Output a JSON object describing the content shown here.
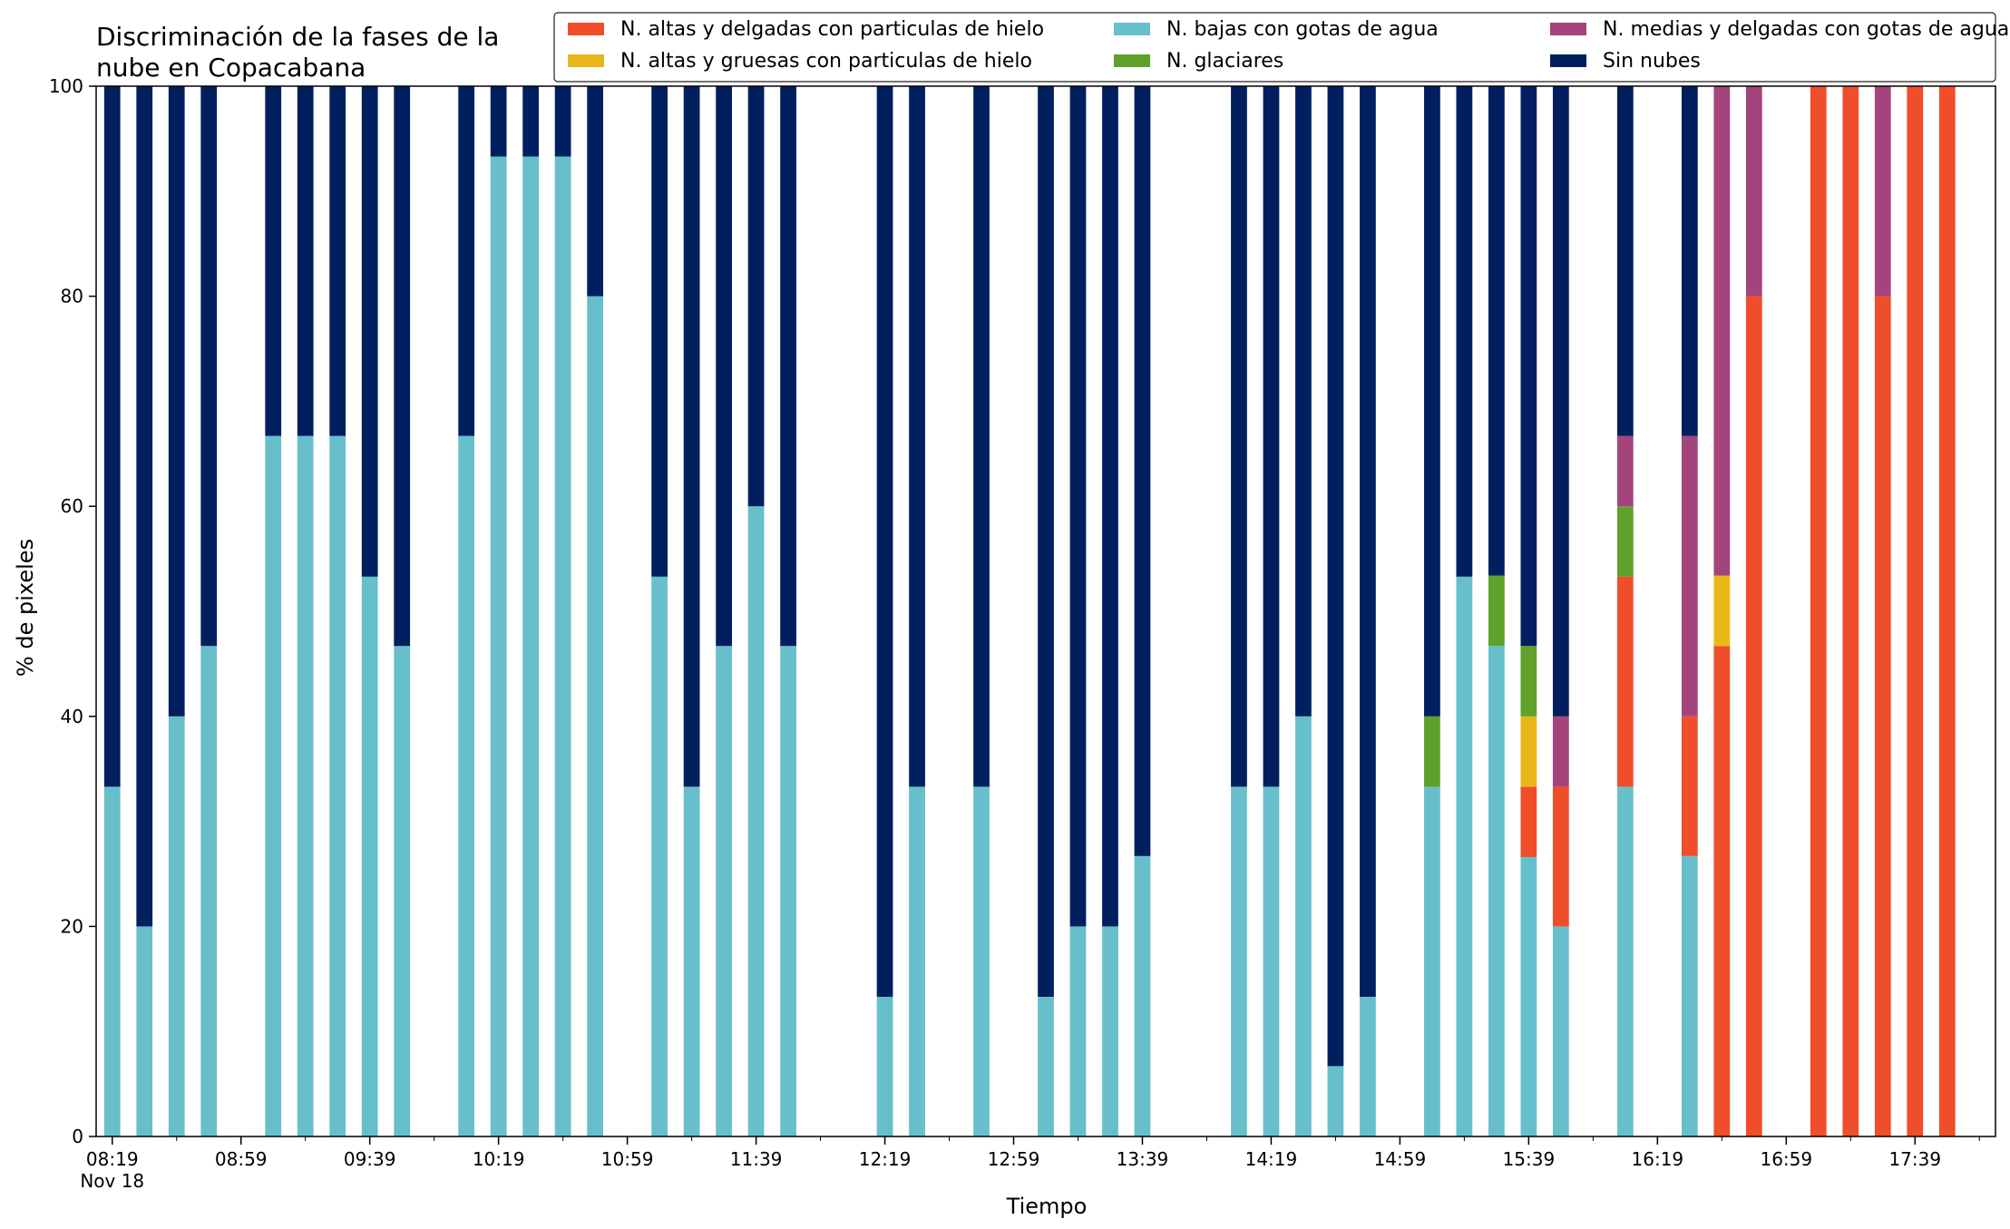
{
  "chart_data": {
    "type": "bar",
    "stacked": true,
    "title": "Discriminación de la fases de la nube en Copacabana",
    "title_lines": [
      "Discriminación de la fases de la",
      "nube en Copacabana"
    ],
    "xlabel": "Tiempo",
    "ylabel": "% de pixeles",
    "ylim": [
      0,
      100
    ],
    "yticks": [
      0,
      20,
      40,
      60,
      80,
      100
    ],
    "xlim": [
      -0.5,
      58.5
    ],
    "x_tick_labels": [
      {
        "at": 0,
        "label": "08:19",
        "sublabel": "Nov 18"
      },
      {
        "at": 4,
        "label": "08:59"
      },
      {
        "at": 8,
        "label": "09:39"
      },
      {
        "at": 12,
        "label": "10:19"
      },
      {
        "at": 16,
        "label": "10:59"
      },
      {
        "at": 20,
        "label": "11:39"
      },
      {
        "at": 24,
        "label": "12:19"
      },
      {
        "at": 28,
        "label": "12:59"
      },
      {
        "at": 32,
        "label": "13:39"
      },
      {
        "at": 36,
        "label": "14:19"
      },
      {
        "at": 40,
        "label": "14:59"
      },
      {
        "at": 44,
        "label": "15:39"
      },
      {
        "at": 48,
        "label": "16:19"
      },
      {
        "at": 52,
        "label": "16:59"
      },
      {
        "at": 56,
        "label": "17:39"
      }
    ],
    "legend_position": "top-right",
    "legend_columns": 3,
    "legend_order": [
      "altas_delgadas",
      "altas_gruesas",
      "bajas_agua",
      "glaciares",
      "medias_agua",
      "sin_nubes"
    ],
    "series": [
      {
        "key": "bajas_agua",
        "name": "N. bajas con gotas de agua",
        "color": "#67bfcb"
      },
      {
        "key": "altas_delgadas",
        "name": "N. altas y delgadas con particulas de hielo",
        "color": "#f04e2a"
      },
      {
        "key": "altas_gruesas",
        "name": "N. altas y gruesas con particulas de hielo",
        "color": "#e8b81a"
      },
      {
        "key": "glaciares",
        "name": "N. glaciares",
        "color": "#5fa12a"
      },
      {
        "key": "medias_agua",
        "name": "N. medias y delgadas con gotas de agua",
        "color": "#a3447d"
      },
      {
        "key": "sin_nubes",
        "name": "Sin nubes",
        "color": "#001f5f"
      }
    ],
    "bars": [
      {
        "x": 0,
        "altas_delgadas": 0,
        "altas_gruesas": 0,
        "bajas_agua": 33.3,
        "glaciares": 0,
        "medias_agua": 0,
        "sin_nubes": 66.7
      },
      {
        "x": 1,
        "altas_delgadas": 0,
        "altas_gruesas": 0,
        "bajas_agua": 20,
        "glaciares": 0,
        "medias_agua": 0,
        "sin_nubes": 80
      },
      {
        "x": 2,
        "altas_delgadas": 0,
        "altas_gruesas": 0,
        "bajas_agua": 40,
        "glaciares": 0,
        "medias_agua": 0,
        "sin_nubes": 60
      },
      {
        "x": 3,
        "altas_delgadas": 0,
        "altas_gruesas": 0,
        "bajas_agua": 46.7,
        "glaciares": 0,
        "medias_agua": 0,
        "sin_nubes": 53.3
      },
      {
        "x": 5,
        "altas_delgadas": 0,
        "altas_gruesas": 0,
        "bajas_agua": 66.7,
        "glaciares": 0,
        "medias_agua": 0,
        "sin_nubes": 33.3
      },
      {
        "x": 6,
        "altas_delgadas": 0,
        "altas_gruesas": 0,
        "bajas_agua": 66.7,
        "glaciares": 0,
        "medias_agua": 0,
        "sin_nubes": 33.3
      },
      {
        "x": 7,
        "altas_delgadas": 0,
        "altas_gruesas": 0,
        "bajas_agua": 66.7,
        "glaciares": 0,
        "medias_agua": 0,
        "sin_nubes": 33.3
      },
      {
        "x": 8,
        "altas_delgadas": 0,
        "altas_gruesas": 0,
        "bajas_agua": 53.3,
        "glaciares": 0,
        "medias_agua": 0,
        "sin_nubes": 46.7
      },
      {
        "x": 9,
        "altas_delgadas": 0,
        "altas_gruesas": 0,
        "bajas_agua": 46.7,
        "glaciares": 0,
        "medias_agua": 0,
        "sin_nubes": 53.3
      },
      {
        "x": 11,
        "altas_delgadas": 0,
        "altas_gruesas": 0,
        "bajas_agua": 66.7,
        "glaciares": 0,
        "medias_agua": 0,
        "sin_nubes": 33.3
      },
      {
        "x": 12,
        "altas_delgadas": 0,
        "altas_gruesas": 0,
        "bajas_agua": 93.3,
        "glaciares": 0,
        "medias_agua": 0,
        "sin_nubes": 6.7
      },
      {
        "x": 13,
        "altas_delgadas": 0,
        "altas_gruesas": 0,
        "bajas_agua": 93.3,
        "glaciares": 0,
        "medias_agua": 0,
        "sin_nubes": 6.7
      },
      {
        "x": 14,
        "altas_delgadas": 0,
        "altas_gruesas": 0,
        "bajas_agua": 93.3,
        "glaciares": 0,
        "medias_agua": 0,
        "sin_nubes": 6.7
      },
      {
        "x": 15,
        "altas_delgadas": 0,
        "altas_gruesas": 0,
        "bajas_agua": 80,
        "glaciares": 0,
        "medias_agua": 0,
        "sin_nubes": 20
      },
      {
        "x": 17,
        "altas_delgadas": 0,
        "altas_gruesas": 0,
        "bajas_agua": 53.3,
        "glaciares": 0,
        "medias_agua": 0,
        "sin_nubes": 46.7
      },
      {
        "x": 18,
        "altas_delgadas": 0,
        "altas_gruesas": 0,
        "bajas_agua": 33.3,
        "glaciares": 0,
        "medias_agua": 0,
        "sin_nubes": 66.7
      },
      {
        "x": 19,
        "altas_delgadas": 0,
        "altas_gruesas": 0,
        "bajas_agua": 46.7,
        "glaciares": 0,
        "medias_agua": 0,
        "sin_nubes": 53.3
      },
      {
        "x": 20,
        "altas_delgadas": 0,
        "altas_gruesas": 0,
        "bajas_agua": 60,
        "glaciares": 0,
        "medias_agua": 0,
        "sin_nubes": 40
      },
      {
        "x": 21,
        "altas_delgadas": 0,
        "altas_gruesas": 0,
        "bajas_agua": 46.7,
        "glaciares": 0,
        "medias_agua": 0,
        "sin_nubes": 53.3
      },
      {
        "x": 24,
        "altas_delgadas": 0,
        "altas_gruesas": 0,
        "bajas_agua": 13.3,
        "glaciares": 0,
        "medias_agua": 0,
        "sin_nubes": 86.7
      },
      {
        "x": 25,
        "altas_delgadas": 0,
        "altas_gruesas": 0,
        "bajas_agua": 33.3,
        "glaciares": 0,
        "medias_agua": 0,
        "sin_nubes": 66.7
      },
      {
        "x": 27,
        "altas_delgadas": 0,
        "altas_gruesas": 0,
        "bajas_agua": 33.3,
        "glaciares": 0,
        "medias_agua": 0,
        "sin_nubes": 66.7
      },
      {
        "x": 29,
        "altas_delgadas": 0,
        "altas_gruesas": 0,
        "bajas_agua": 13.3,
        "glaciares": 0,
        "medias_agua": 0,
        "sin_nubes": 86.7
      },
      {
        "x": 30,
        "altas_delgadas": 0,
        "altas_gruesas": 0,
        "bajas_agua": 20,
        "glaciares": 0,
        "medias_agua": 0,
        "sin_nubes": 80
      },
      {
        "x": 31,
        "altas_delgadas": 0,
        "altas_gruesas": 0,
        "bajas_agua": 20,
        "glaciares": 0,
        "medias_agua": 0,
        "sin_nubes": 80
      },
      {
        "x": 32,
        "altas_delgadas": 0,
        "altas_gruesas": 0,
        "bajas_agua": 26.7,
        "glaciares": 0,
        "medias_agua": 0,
        "sin_nubes": 73.3
      },
      {
        "x": 35,
        "altas_delgadas": 0,
        "altas_gruesas": 0,
        "bajas_agua": 33.3,
        "glaciares": 0,
        "medias_agua": 0,
        "sin_nubes": 66.7
      },
      {
        "x": 36,
        "altas_delgadas": 0,
        "altas_gruesas": 0,
        "bajas_agua": 33.3,
        "glaciares": 0,
        "medias_agua": 0,
        "sin_nubes": 66.7
      },
      {
        "x": 37,
        "altas_delgadas": 0,
        "altas_gruesas": 0,
        "bajas_agua": 40,
        "glaciares": 0,
        "medias_agua": 0,
        "sin_nubes": 60
      },
      {
        "x": 38,
        "altas_delgadas": 0,
        "altas_gruesas": 0,
        "bajas_agua": 6.7,
        "glaciares": 0,
        "medias_agua": 0,
        "sin_nubes": 93.3
      },
      {
        "x": 39,
        "altas_delgadas": 0,
        "altas_gruesas": 0,
        "bajas_agua": 13.3,
        "glaciares": 0,
        "medias_agua": 0,
        "sin_nubes": 86.7
      },
      {
        "x": 41,
        "altas_delgadas": 0,
        "altas_gruesas": 0,
        "bajas_agua": 33.3,
        "glaciares": 6.7,
        "medias_agua": 0,
        "sin_nubes": 60
      },
      {
        "x": 42,
        "altas_delgadas": 0,
        "altas_gruesas": 0,
        "bajas_agua": 53.3,
        "glaciares": 0,
        "medias_agua": 0,
        "sin_nubes": 46.7
      },
      {
        "x": 43,
        "altas_delgadas": 0,
        "altas_gruesas": 0,
        "bajas_agua": 46.7,
        "glaciares": 6.7,
        "medias_agua": 0,
        "sin_nubes": 46.6
      },
      {
        "x": 44,
        "altas_delgadas": 6.7,
        "altas_gruesas": 6.7,
        "bajas_agua": 26.6,
        "glaciares": 6.7,
        "medias_agua": 0,
        "sin_nubes": 53.3
      },
      {
        "x": 45,
        "altas_delgadas": 13.3,
        "altas_gruesas": 0,
        "bajas_agua": 20,
        "glaciares": 0,
        "medias_agua": 6.7,
        "sin_nubes": 60
      },
      {
        "x": 47,
        "altas_delgadas": 20,
        "altas_gruesas": 0,
        "bajas_agua": 33.3,
        "glaciares": 6.7,
        "medias_agua": 6.7,
        "sin_nubes": 33.3
      },
      {
        "x": 49,
        "altas_delgadas": 13.3,
        "altas_gruesas": 0,
        "bajas_agua": 26.7,
        "glaciares": 0,
        "medias_agua": 26.7,
        "sin_nubes": 33.3
      },
      {
        "x": 50,
        "altas_delgadas": 46.7,
        "altas_gruesas": 6.7,
        "bajas_agua": 0,
        "glaciares": 0,
        "medias_agua": 46.6,
        "sin_nubes": 0
      },
      {
        "x": 51,
        "altas_delgadas": 80,
        "altas_gruesas": 0,
        "bajas_agua": 0,
        "glaciares": 0,
        "medias_agua": 20,
        "sin_nubes": 0
      },
      {
        "x": 53,
        "altas_delgadas": 100,
        "altas_gruesas": 0,
        "bajas_agua": 0,
        "glaciares": 0,
        "medias_agua": 0,
        "sin_nubes": 0
      },
      {
        "x": 54,
        "altas_delgadas": 100,
        "altas_gruesas": 0,
        "bajas_agua": 0,
        "glaciares": 0,
        "medias_agua": 0,
        "sin_nubes": 0
      },
      {
        "x": 55,
        "altas_delgadas": 80,
        "altas_gruesas": 0,
        "bajas_agua": 0,
        "glaciares": 0,
        "medias_agua": 20,
        "sin_nubes": 0
      },
      {
        "x": 56,
        "altas_delgadas": 100,
        "altas_gruesas": 0,
        "bajas_agua": 0,
        "glaciares": 0,
        "medias_agua": 0,
        "sin_nubes": 0
      },
      {
        "x": 57,
        "altas_delgadas": 100,
        "altas_gruesas": 0,
        "bajas_agua": 0,
        "glaciares": 0,
        "medias_agua": 0,
        "sin_nubes": 0
      }
    ]
  }
}
